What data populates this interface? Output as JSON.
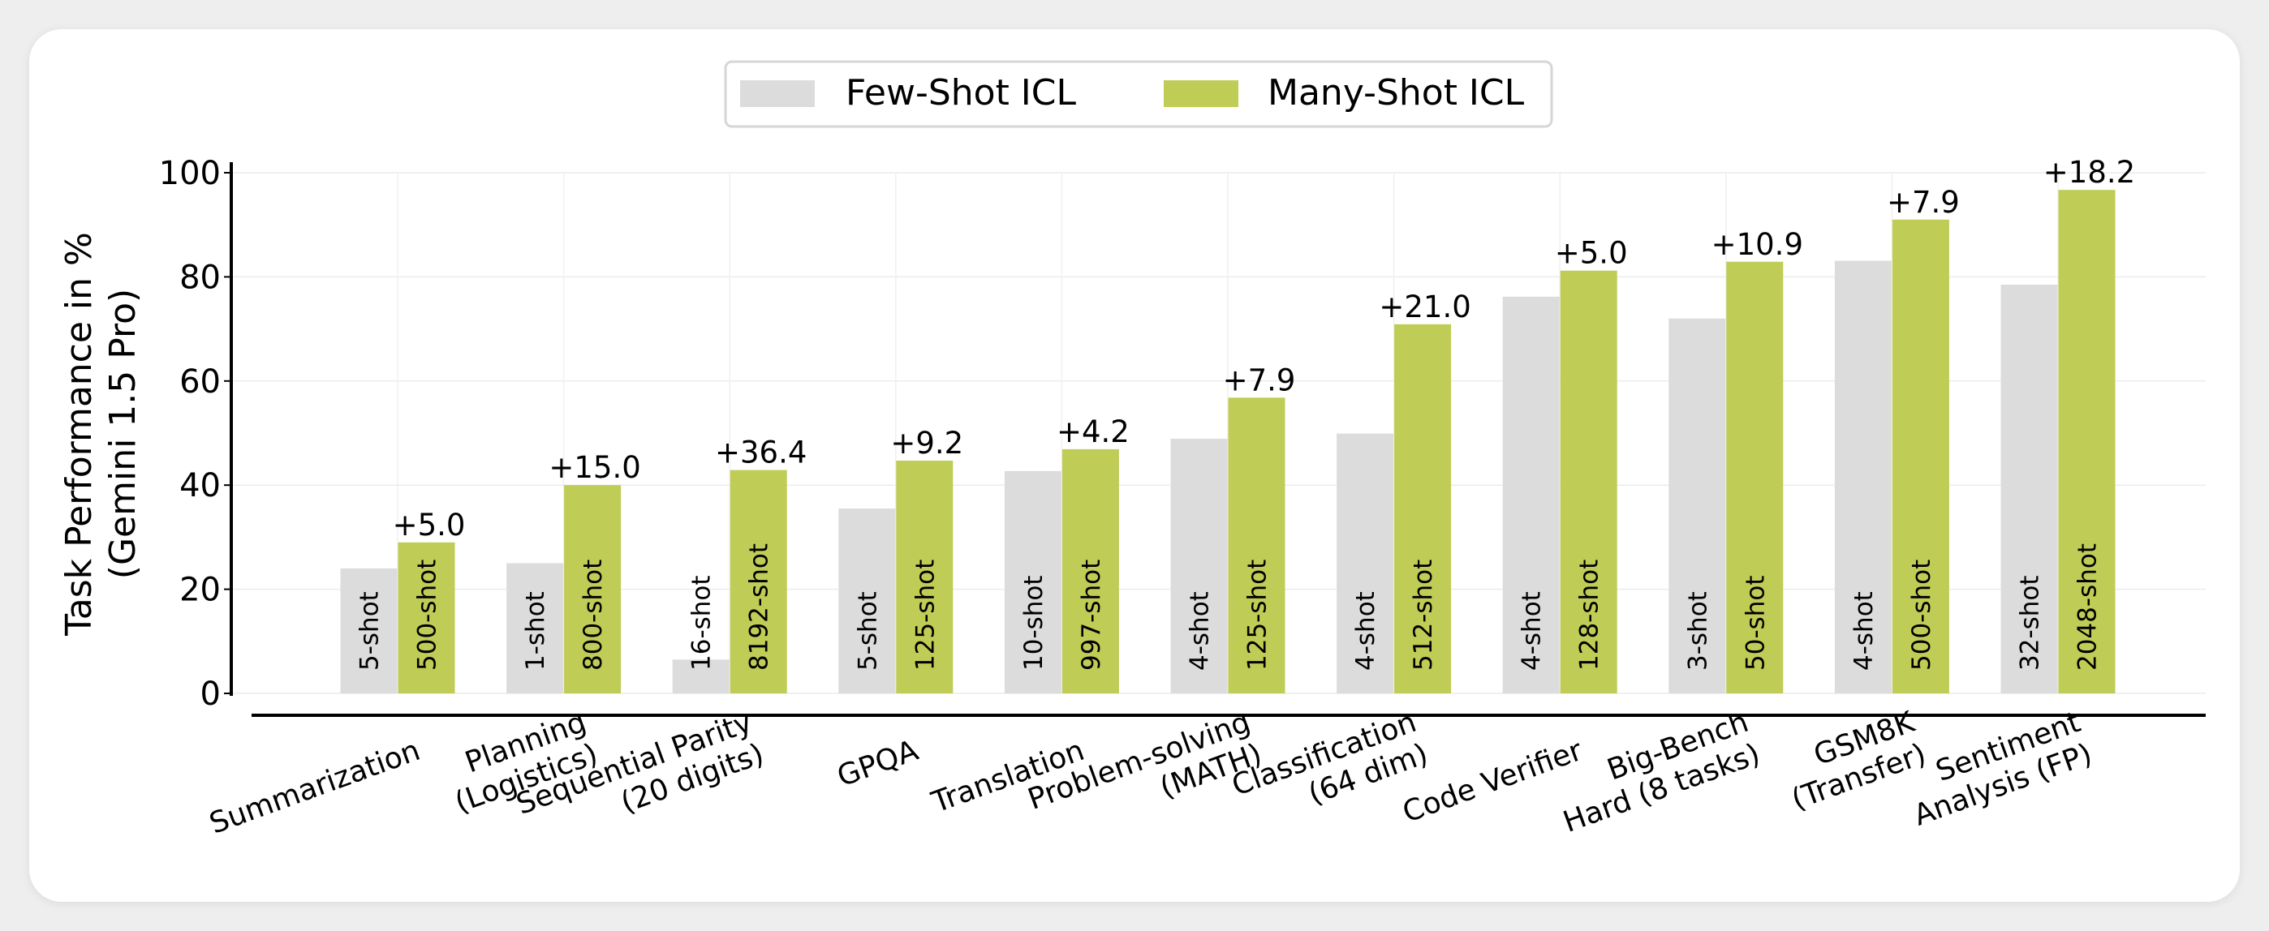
{
  "chart_data": {
    "type": "bar",
    "title": "",
    "xlabel": "",
    "ylabel": [
      "Task Performance in %",
      "(Gemini 1.5 Pro)"
    ],
    "ylim": [
      0,
      100
    ],
    "yticks": [
      0,
      20,
      40,
      60,
      80,
      100
    ],
    "grid": true,
    "legend_position": "top-center",
    "categories": [
      "Summarization",
      "Planning\n(Logistics)",
      "Sequential Parity\n(20 digits)",
      "GPQA",
      "Translation",
      "Problem-solving\n(MATH)",
      "Classification\n(64 dim)",
      "Code Verifier",
      "Big-Bench\nHard (8 tasks)",
      "GSM8K\n(Transfer)",
      "Sentiment\nAnalysis (FP)"
    ],
    "series": [
      {
        "name": "Few-Shot ICL",
        "color": "#dcdcdc",
        "values": [
          24,
          25,
          6.5,
          35.5,
          42.7,
          48.9,
          49.9,
          76.2,
          72,
          83.1,
          78.5
        ],
        "shots": [
          "5-shot",
          "1-shot",
          "16-shot",
          "5-shot",
          "10-shot",
          "4-shot",
          "4-shot",
          "4-shot",
          "3-shot",
          "4-shot",
          "32-shot"
        ]
      },
      {
        "name": "Many-Shot ICL",
        "color": "#bfcc55",
        "values": [
          29,
          40,
          42.9,
          44.7,
          46.9,
          56.8,
          70.9,
          81.2,
          82.9,
          91,
          96.7
        ],
        "shots": [
          "500-shot",
          "800-shot",
          "8192-shot",
          "125-shot",
          "997-shot",
          "125-shot",
          "512-shot",
          "128-shot",
          "50-shot",
          "500-shot",
          "2048-shot"
        ]
      }
    ],
    "deltas": [
      "+5.0",
      "+15.0",
      "+36.4",
      "+9.2",
      "+4.2",
      "+7.9",
      "+21.0",
      "+5.0",
      "+10.9",
      "+7.9",
      "+18.2"
    ]
  }
}
